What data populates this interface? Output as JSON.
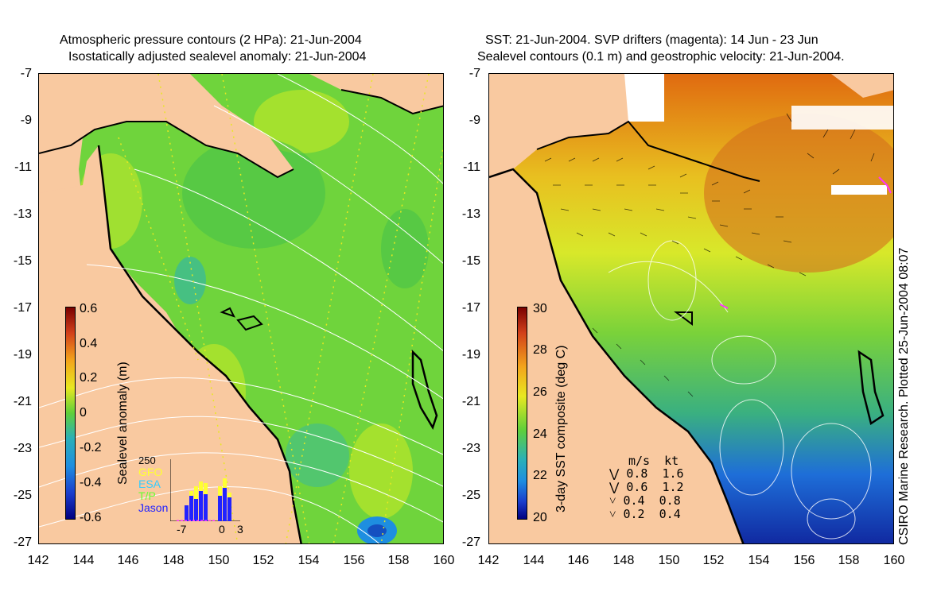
{
  "left": {
    "title1": "Atmospheric pressure contours (2 HPa): 21-Jun-2004",
    "title2": "Isostatically adjusted sealevel anomaly: 21-Jun-2004",
    "colorbar_label": "Sealevel anomaly (m)",
    "colorbar_ticks": [
      "0.6",
      "0.4",
      "0.2",
      "0",
      "-0.2",
      "-0.4",
      "-0.6"
    ],
    "inset": {
      "ymax": "250",
      "legend": [
        "GFO",
        "ESA",
        "T/P",
        "Jason"
      ],
      "legend_colors": [
        "#ffff33",
        "#33ccff",
        "#66ff33",
        "#2222ff"
      ],
      "xticks": [
        "-7",
        "0",
        "3"
      ]
    }
  },
  "right": {
    "title1": "SST: 21-Jun-2004. SVP drifters (magenta): 14 Jun - 23 Jun",
    "title2": "Sealevel contours (0.1 m) and geostrophic velocity: 21-Jun-2004.",
    "colorbar_label": "3-day SST composite (deg C)",
    "colorbar_ticks": [
      "30",
      "28",
      "26",
      "24",
      "22",
      "20"
    ],
    "speed_header": "m/s  kt",
    "speed_rows": [
      "0.8  1.6",
      "0.6  1.2",
      "0.4  0.8",
      "0.2  0.4"
    ],
    "credit": "CSIRO Marine Research. Plotted 25-Jun-2004 08:07"
  },
  "axes": {
    "lat_labels": [
      "-7",
      "-9",
      "-11",
      "-13",
      "-15",
      "-17",
      "-19",
      "-21",
      "-23",
      "-25",
      "-27"
    ],
    "lon_labels": [
      "142",
      "144",
      "146",
      "148",
      "150",
      "152",
      "154",
      "156",
      "158",
      "160"
    ]
  },
  "colors": {
    "land": "#f9c9a0",
    "ocean_green": "#5fcf3a",
    "coast": "#000000"
  }
}
